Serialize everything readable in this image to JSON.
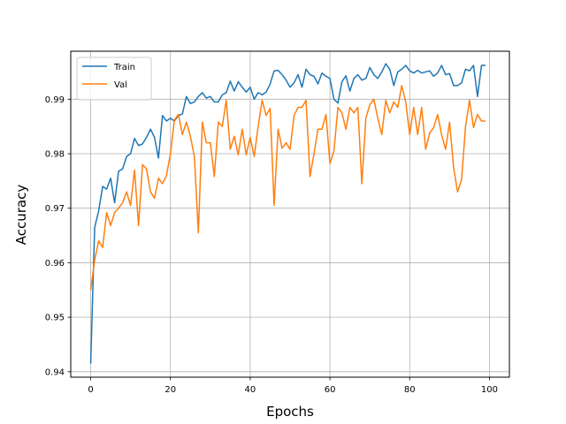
{
  "chart_data": {
    "type": "line",
    "title": "",
    "xlabel": "Epochs",
    "ylabel": "Accuracy",
    "xlim": [
      -5,
      105
    ],
    "ylim": [
      0.939,
      0.9988
    ],
    "x_ticks": [
      0,
      20,
      40,
      60,
      80,
      100
    ],
    "y_ticks": [
      0.94,
      0.95,
      0.96,
      0.97,
      0.98,
      0.99
    ],
    "grid": true,
    "legend_position": "top-left",
    "x": [
      0,
      1,
      2,
      3,
      4,
      5,
      6,
      7,
      8,
      9,
      10,
      11,
      12,
      13,
      14,
      15,
      16,
      17,
      18,
      19,
      20,
      21,
      22,
      23,
      24,
      25,
      26,
      27,
      28,
      29,
      30,
      31,
      32,
      33,
      34,
      35,
      36,
      37,
      38,
      39,
      40,
      41,
      42,
      43,
      44,
      45,
      46,
      47,
      48,
      49,
      50,
      51,
      52,
      53,
      54,
      55,
      56,
      57,
      58,
      59,
      60,
      61,
      62,
      63,
      64,
      65,
      66,
      67,
      68,
      69,
      70,
      71,
      72,
      73,
      74,
      75,
      76,
      77,
      78,
      79,
      80,
      81,
      82,
      83,
      84,
      85,
      86,
      87,
      88,
      89,
      90,
      91,
      92,
      93,
      94,
      95,
      96,
      97,
      98,
      99
    ],
    "series": [
      {
        "name": "Train",
        "color": "#1f77b4",
        "values": [
          0.9415,
          0.9665,
          0.9695,
          0.974,
          0.9735,
          0.9755,
          0.971,
          0.9768,
          0.9772,
          0.9795,
          0.98,
          0.9828,
          0.9815,
          0.9818,
          0.983,
          0.9845,
          0.983,
          0.9792,
          0.987,
          0.986,
          0.9865,
          0.986,
          0.987,
          0.9873,
          0.9905,
          0.9892,
          0.9895,
          0.9905,
          0.9912,
          0.9902,
          0.9905,
          0.9895,
          0.9895,
          0.9908,
          0.9912,
          0.9933,
          0.9915,
          0.9932,
          0.9922,
          0.9913,
          0.9922,
          0.99,
          0.9912,
          0.9908,
          0.9913,
          0.9928,
          0.9952,
          0.9953,
          0.9945,
          0.9935,
          0.9922,
          0.993,
          0.9945,
          0.9922,
          0.9955,
          0.9945,
          0.9942,
          0.9928,
          0.9948,
          0.9942,
          0.9938,
          0.99,
          0.9893,
          0.9932,
          0.9943,
          0.9915,
          0.9938,
          0.9945,
          0.9935,
          0.9938,
          0.9958,
          0.9945,
          0.9938,
          0.995,
          0.9965,
          0.9955,
          0.9925,
          0.995,
          0.9955,
          0.9962,
          0.9952,
          0.9948,
          0.9953,
          0.9948,
          0.995,
          0.9952,
          0.9942,
          0.9948,
          0.9962,
          0.9945,
          0.9947,
          0.9925,
          0.9925,
          0.993,
          0.9955,
          0.9952,
          0.9962,
          0.9905,
          0.9962,
          0.9962
        ]
      },
      {
        "name": "Val",
        "color": "#ff7f0e",
        "values": [
          0.955,
          0.9605,
          0.964,
          0.9628,
          0.9692,
          0.9668,
          0.9692,
          0.97,
          0.971,
          0.973,
          0.9705,
          0.977,
          0.9668,
          0.978,
          0.9772,
          0.973,
          0.9718,
          0.9755,
          0.9745,
          0.976,
          0.98,
          0.9862,
          0.9872,
          0.9835,
          0.9858,
          0.9832,
          0.9795,
          0.9655,
          0.9858,
          0.982,
          0.982,
          0.9758,
          0.9858,
          0.985,
          0.9898,
          0.9808,
          0.9832,
          0.9798,
          0.9845,
          0.9798,
          0.983,
          0.9795,
          0.985,
          0.9898,
          0.987,
          0.9883,
          0.9705,
          0.9845,
          0.981,
          0.982,
          0.9808,
          0.987,
          0.9885,
          0.9885,
          0.9898,
          0.9758,
          0.98,
          0.9845,
          0.9845,
          0.9872,
          0.9782,
          0.9805,
          0.9885,
          0.9875,
          0.9845,
          0.9885,
          0.9875,
          0.9885,
          0.9745,
          0.9865,
          0.989,
          0.99,
          0.9865,
          0.9835,
          0.9898,
          0.9875,
          0.9895,
          0.9885,
          0.9925,
          0.9895,
          0.9835,
          0.9885,
          0.9835,
          0.9885,
          0.9808,
          0.9838,
          0.9848,
          0.9872,
          0.9835,
          0.9808,
          0.9858,
          0.9775,
          0.973,
          0.9752,
          0.985,
          0.9898,
          0.9848,
          0.9872,
          0.986,
          0.986
        ]
      }
    ]
  }
}
